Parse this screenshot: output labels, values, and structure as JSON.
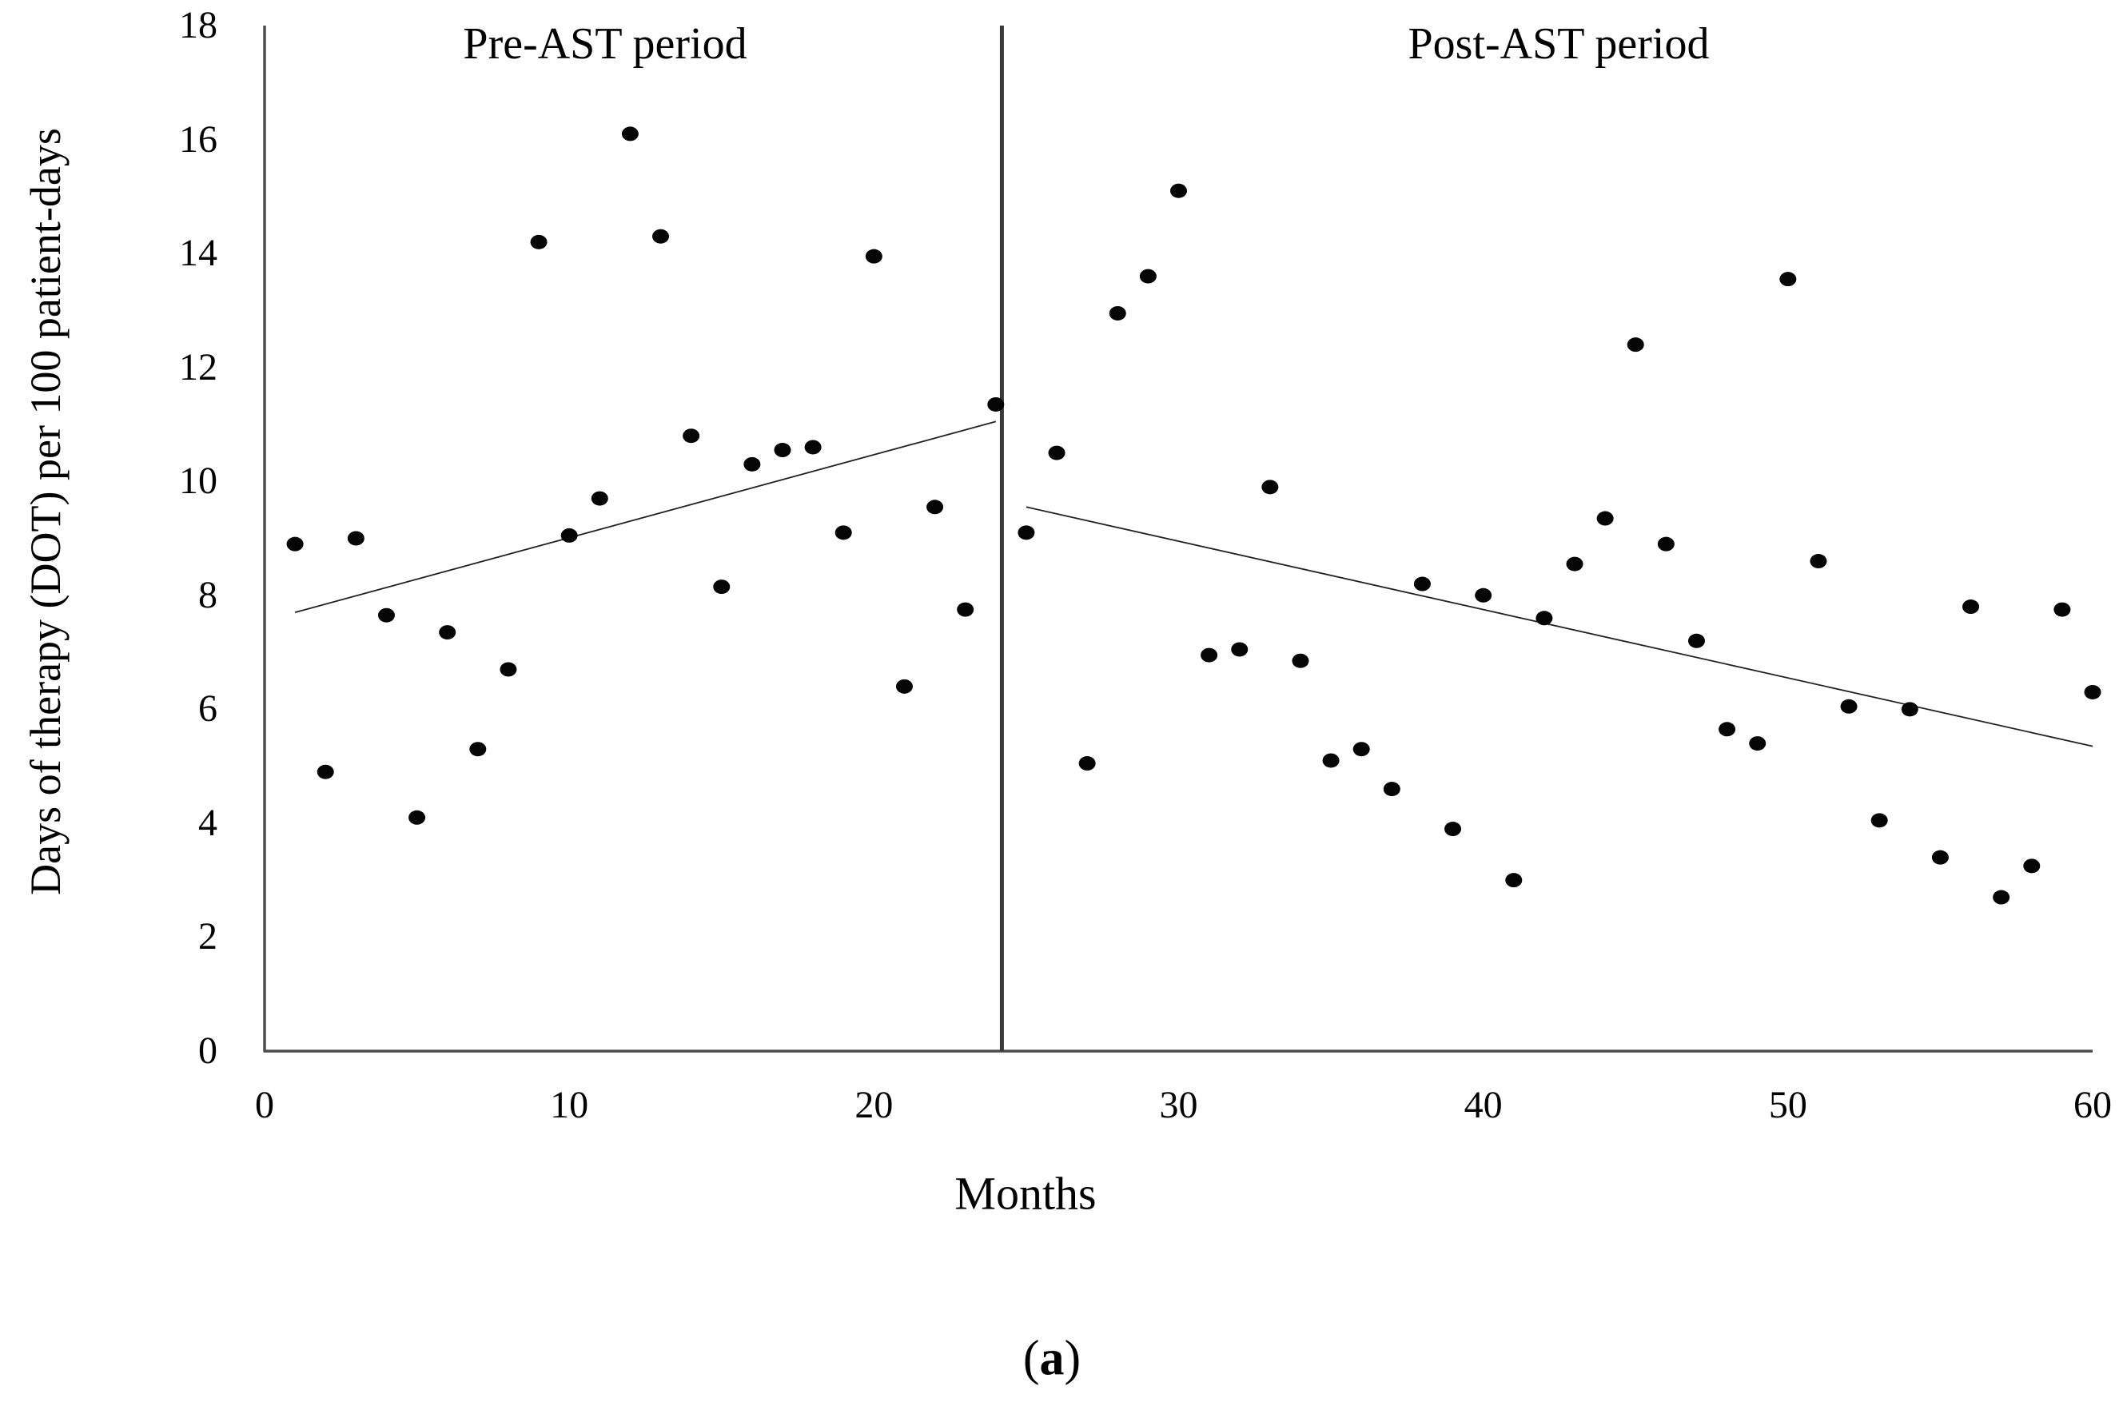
{
  "figure": {
    "caption_parts": [
      "(",
      "a",
      ")"
    ]
  },
  "chart_data": {
    "type": "scatter",
    "title": "",
    "xlabel": "Months",
    "ylabel": "Days of therapy (DOT) per 100 patient-days",
    "xlim": [
      0,
      60
    ],
    "ylim": [
      0,
      18
    ],
    "x_ticks": [
      0,
      10,
      20,
      30,
      40,
      50,
      60
    ],
    "y_ticks": [
      0,
      2,
      4,
      6,
      8,
      10,
      12,
      14,
      16,
      18
    ],
    "grid": false,
    "legend": "none",
    "annotations": {
      "pre_label": "Pre-AST period",
      "post_label": "Post-AST period"
    },
    "divider_x": 24.2,
    "series": [
      {
        "name": "Pre-AST period",
        "x": [
          1,
          2,
          3,
          4,
          5,
          6,
          7,
          8,
          9,
          10,
          11,
          12,
          13,
          14,
          15,
          16,
          17,
          18,
          19,
          20,
          21,
          22,
          23,
          24
        ],
        "values": [
          8.9,
          4.9,
          9.0,
          7.65,
          4.1,
          7.35,
          5.3,
          6.7,
          14.2,
          9.05,
          9.7,
          16.1,
          14.3,
          10.8,
          8.15,
          10.3,
          10.55,
          10.6,
          9.1,
          13.95,
          6.4,
          9.55,
          7.75,
          11.35
        ]
      },
      {
        "name": "Post-AST period",
        "x": [
          25,
          26,
          27,
          28,
          29,
          30,
          31,
          32,
          33,
          34,
          35,
          36,
          37,
          38,
          39,
          40,
          41,
          42,
          43,
          44,
          45,
          46,
          47,
          48,
          49,
          50,
          51,
          52,
          53,
          54,
          55,
          56,
          57,
          58,
          59,
          60
        ],
        "values": [
          9.1,
          10.5,
          5.05,
          12.95,
          13.6,
          15.1,
          6.95,
          7.05,
          9.9,
          6.85,
          5.1,
          5.3,
          4.6,
          8.2,
          3.9,
          8.0,
          3.0,
          7.6,
          8.55,
          9.35,
          12.4,
          8.9,
          7.2,
          5.65,
          5.4,
          13.55,
          8.6,
          6.05,
          4.05,
          6.0,
          3.4,
          7.8,
          2.7,
          3.25,
          7.75,
          6.3
        ]
      }
    ],
    "trend_lines": [
      {
        "name": "pre-trend-line",
        "x1": 1,
        "y1": 7.7,
        "x2": 24,
        "y2": 11.05
      },
      {
        "name": "post-trend-line",
        "x1": 25,
        "y1": 9.55,
        "x2": 60,
        "y2": 5.35
      }
    ],
    "point_color": "#050505",
    "axis_color": "#4d4d4d",
    "divider_color": "#3a3a3a",
    "trend_color": "#222222"
  }
}
